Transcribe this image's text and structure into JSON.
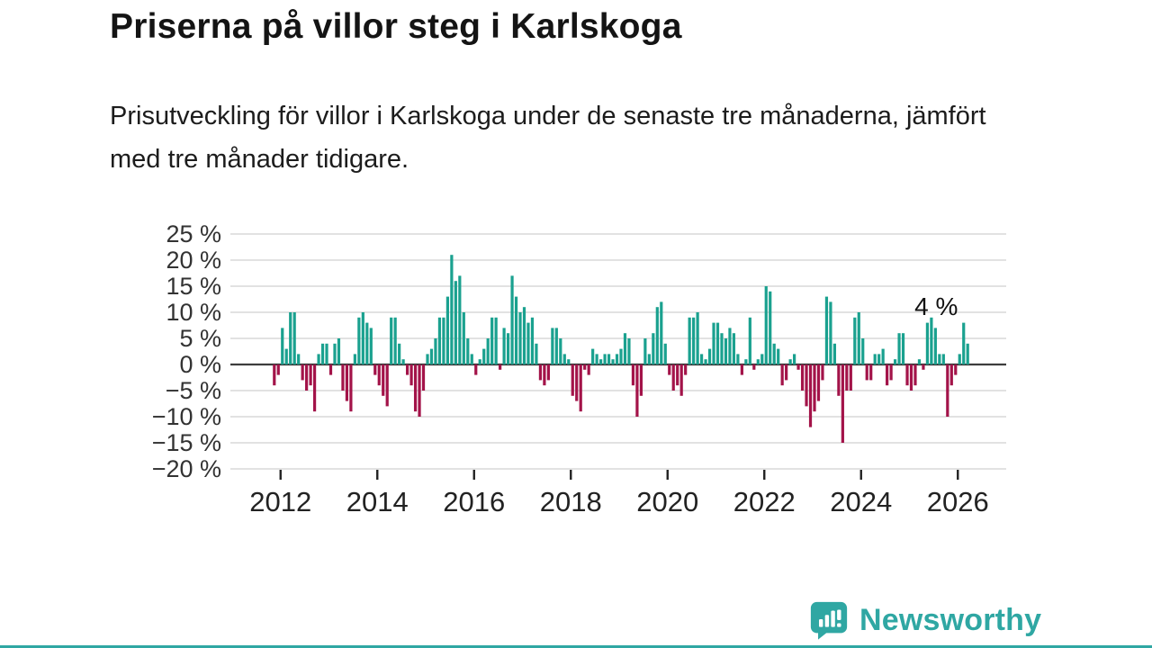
{
  "header": {
    "title": "Priserna på villor steg i Karlskoga",
    "subtitle": "Prisutveckling för villor i Karlskoga under de senaste tre månaderna, jämfört med tre månader tidigare."
  },
  "chart_data": {
    "type": "bar",
    "title": "Prisutveckling för villor i Karlskoga",
    "unit": "%",
    "frequency": "monthly",
    "x_start": "2011-11",
    "x_end": "2026-03",
    "values": [
      -4,
      -2,
      7,
      3,
      10,
      10,
      2,
      -3,
      -5,
      -4,
      -9,
      2,
      4,
      4,
      -2,
      4,
      5,
      -5,
      -7,
      -9,
      2,
      9,
      10,
      8,
      7,
      -2,
      -4,
      -6,
      -8,
      9,
      9,
      4,
      1,
      -2,
      -4,
      -9,
      -10,
      -5,
      2,
      3,
      5,
      9,
      9,
      13,
      21,
      16,
      17,
      10,
      5,
      2,
      -2,
      1,
      3,
      5,
      9,
      9,
      -1,
      7,
      6,
      17,
      13,
      10,
      11,
      8,
      9,
      4,
      -3,
      -4,
      -3,
      7,
      7,
      5,
      2,
      1,
      -6,
      -7,
      -9,
      -1,
      -2,
      3,
      2,
      1,
      2,
      2,
      1,
      2,
      3,
      6,
      5,
      -4,
      -10,
      -6,
      5,
      2,
      6,
      11,
      12,
      4,
      -2,
      -5,
      -4,
      -6,
      -2,
      9,
      9,
      10,
      2,
      1,
      3,
      8,
      8,
      6,
      5,
      7,
      6,
      2,
      -2,
      1,
      9,
      -1,
      1,
      2,
      15,
      14,
      4,
      3,
      -4,
      -3,
      1,
      2,
      -1,
      -5,
      -8,
      -12,
      -9,
      -7,
      -3,
      13,
      12,
      4,
      -6,
      -15,
      -5,
      -5,
      9,
      10,
      5,
      -3,
      -3,
      2,
      2,
      3,
      -4,
      -3,
      1,
      6,
      6,
      -4,
      -5,
      -4,
      1,
      -1,
      8,
      9,
      7,
      2,
      2,
      -10,
      -4,
      -2,
      2,
      8,
      4
    ],
    "ylim": [
      -20,
      25
    ],
    "y_ticks": [
      {
        "value": 25,
        "label": "25 %"
      },
      {
        "value": 20,
        "label": "20 %"
      },
      {
        "value": 15,
        "label": "15 %"
      },
      {
        "value": 10,
        "label": "10 %"
      },
      {
        "value": 5,
        "label": "5 %"
      },
      {
        "value": 0,
        "label": "0 %"
      },
      {
        "value": -5,
        "label": "−5 %"
      },
      {
        "value": -10,
        "label": "−10 %"
      },
      {
        "value": -15,
        "label": "−15 %"
      },
      {
        "value": -20,
        "label": "−20 %"
      }
    ],
    "x_ticks": [
      {
        "year": 2012,
        "label": "2012"
      },
      {
        "year": 2014,
        "label": "2014"
      },
      {
        "year": 2016,
        "label": "2016"
      },
      {
        "year": 2018,
        "label": "2018"
      },
      {
        "year": 2020,
        "label": "2020"
      },
      {
        "year": 2022,
        "label": "2022"
      },
      {
        "year": 2024,
        "label": "2024"
      },
      {
        "year": 2026,
        "label": "2026"
      }
    ],
    "annotation": {
      "text": "4 %",
      "value": 4
    },
    "grid": true,
    "legend": "none",
    "colors": {
      "positive": "#1aa18f",
      "negative": "#a31349",
      "gridline": "#d8d8d8",
      "zero_line": "#3d3d3d",
      "axis_text": "#333333",
      "x_axis_text": "#222222",
      "annotation_text": "#111111"
    }
  },
  "footer": {
    "brand": "Newsworthy",
    "logo_icon": "newsworthy-speech-bubble-chart-icon",
    "brand_color": "#2fa7a3"
  }
}
